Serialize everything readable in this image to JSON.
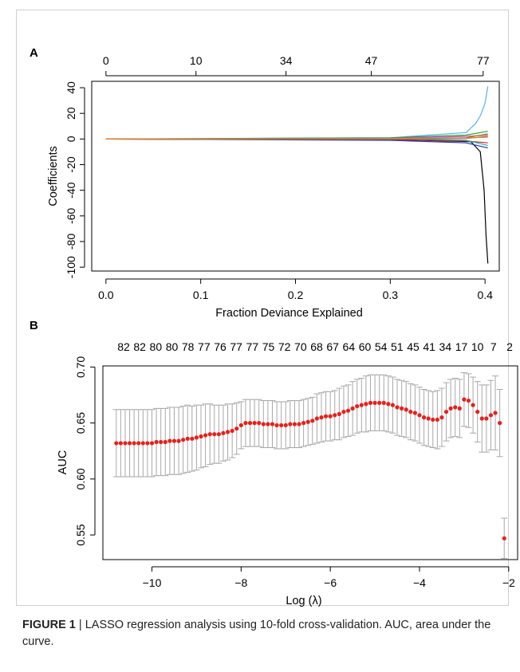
{
  "caption": {
    "label": "FIGURE 1",
    "separator": " | ",
    "text": "LASSO regression analysis using 10-fold cross-validation. AUC, area under the curve."
  },
  "chart_data": [
    {
      "panel": "A",
      "type": "line",
      "xlabel": "Fraction Deviance Explained",
      "ylabel": "Coefficients",
      "xlim": [
        -0.015,
        0.415
      ],
      "ylim": [
        -103,
        45
      ],
      "x_ticks": [
        0.0,
        0.1,
        0.2,
        0.3,
        0.4
      ],
      "x_tick_labels": [
        "0.0",
        "0.1",
        "0.2",
        "0.3",
        "0.4"
      ],
      "y_ticks": [
        40,
        20,
        0,
        -20,
        -40,
        -60,
        -80,
        -100
      ],
      "y_tick_labels": [
        "40",
        "20",
        "0",
        "-20",
        "-40",
        "-60",
        "-80",
        "-100"
      ],
      "top_axis_ticks": [
        0.0,
        0.095,
        0.19,
        0.28,
        0.398
      ],
      "top_axis_labels": [
        "0",
        "10",
        "34",
        "47",
        "77"
      ],
      "grid": false,
      "series": [
        {
          "color": "#56b4e9",
          "x": [
            0,
            0.3,
            0.38,
            0.39,
            0.395,
            0.4,
            0.403
          ],
          "y": [
            0,
            1,
            5,
            12,
            18,
            28,
            41
          ]
        },
        {
          "color": "#000000",
          "x": [
            0,
            0.3,
            0.385,
            0.395,
            0.399,
            0.401,
            0.403
          ],
          "y": [
            0,
            -0.5,
            -2,
            -10,
            -40,
            -75,
            -97
          ]
        },
        {
          "color": "#2b9e3a",
          "x": [
            0,
            0.3,
            0.38,
            0.403
          ],
          "y": [
            0,
            1,
            3,
            6
          ]
        },
        {
          "color": "#cc2222",
          "x": [
            0,
            0.3,
            0.38,
            0.403
          ],
          "y": [
            0,
            -0.5,
            -1.5,
            -3
          ]
        },
        {
          "color": "#2233bb",
          "x": [
            0,
            0.3,
            0.38,
            0.403
          ],
          "y": [
            0,
            -1,
            -3,
            -7
          ]
        },
        {
          "color": "#d14fd1",
          "x": [
            0,
            0.3,
            0.38,
            0.403
          ],
          "y": [
            0,
            0.5,
            2,
            3
          ]
        },
        {
          "color": "#8a8a00",
          "x": [
            0,
            0.3,
            0.38,
            0.403
          ],
          "y": [
            0,
            -0.3,
            1,
            4
          ]
        },
        {
          "color": "#20b2aa",
          "x": [
            0,
            0.3,
            0.38,
            0.403
          ],
          "y": [
            0,
            0.2,
            -1,
            -5
          ]
        },
        {
          "color": "#777777",
          "x": [
            0,
            0.3,
            0.38,
            0.403
          ],
          "y": [
            0,
            -0.2,
            0.5,
            2
          ]
        },
        {
          "color": "#e67e22",
          "x": [
            0,
            0.3,
            0.38,
            0.403
          ],
          "y": [
            0,
            0.3,
            0.8,
            1.5
          ]
        }
      ]
    },
    {
      "panel": "B",
      "type": "scatter",
      "xlabel": "Log (λ)",
      "ylabel": "AUC",
      "xlim": [
        -11.1,
        -1.8
      ],
      "ylim": [
        0.528,
        0.701
      ],
      "x_ticks": [
        -10,
        -8,
        -6,
        -4,
        -2
      ],
      "x_tick_labels": [
        "−10",
        "−8",
        "−6",
        "−4",
        "−2"
      ],
      "y_ticks": [
        0.55,
        0.6,
        0.65,
        0.7
      ],
      "y_tick_labels": [
        "0.55",
        "0.60",
        "0.65",
        "0.70"
      ],
      "top_axis_labels": [
        "82",
        "82",
        "80",
        "80",
        "78",
        "77",
        "76",
        "77",
        "77",
        "75",
        "72",
        "70",
        "68",
        "67",
        "64",
        "60",
        "54",
        "51",
        "45",
        "41",
        "34",
        "17",
        "10",
        "7",
        "2"
      ],
      "grid": false,
      "point_color": "#e8201a",
      "errorbar_color": "#a8a8a8",
      "x": [
        -10.8,
        -10.7,
        -10.6,
        -10.5,
        -10.4,
        -10.3,
        -10.2,
        -10.1,
        -10.0,
        -9.9,
        -9.8,
        -9.7,
        -9.6,
        -9.5,
        -9.4,
        -9.3,
        -9.2,
        -9.1,
        -9.0,
        -8.9,
        -8.8,
        -8.7,
        -8.6,
        -8.5,
        -8.4,
        -8.3,
        -8.2,
        -8.1,
        -8.0,
        -7.9,
        -7.8,
        -7.7,
        -7.6,
        -7.5,
        -7.4,
        -7.3,
        -7.2,
        -7.1,
        -7.0,
        -6.9,
        -6.8,
        -6.7,
        -6.6,
        -6.5,
        -6.4,
        -6.3,
        -6.2,
        -6.1,
        -6.0,
        -5.9,
        -5.8,
        -5.7,
        -5.6,
        -5.5,
        -5.4,
        -5.3,
        -5.2,
        -5.1,
        -5.0,
        -4.9,
        -4.8,
        -4.7,
        -4.6,
        -4.5,
        -4.4,
        -4.3,
        -4.2,
        -4.1,
        -4.0,
        -3.9,
        -3.8,
        -3.7,
        -3.6,
        -3.5,
        -3.4,
        -3.3,
        -3.2,
        -3.1,
        -3.0,
        -2.9,
        -2.8,
        -2.7,
        -2.6,
        -2.5,
        -2.4,
        -2.3,
        -2.2,
        -2.1
      ],
      "y": [
        0.632,
        0.632,
        0.632,
        0.632,
        0.632,
        0.632,
        0.632,
        0.632,
        0.632,
        0.633,
        0.633,
        0.633,
        0.634,
        0.634,
        0.634,
        0.635,
        0.636,
        0.636,
        0.637,
        0.638,
        0.639,
        0.64,
        0.64,
        0.64,
        0.641,
        0.642,
        0.643,
        0.645,
        0.648,
        0.65,
        0.65,
        0.65,
        0.65,
        0.649,
        0.649,
        0.649,
        0.648,
        0.648,
        0.648,
        0.649,
        0.649,
        0.649,
        0.65,
        0.651,
        0.652,
        0.654,
        0.655,
        0.656,
        0.656,
        0.657,
        0.658,
        0.66,
        0.661,
        0.663,
        0.665,
        0.666,
        0.667,
        0.668,
        0.668,
        0.668,
        0.668,
        0.667,
        0.666,
        0.664,
        0.663,
        0.662,
        0.66,
        0.659,
        0.657,
        0.655,
        0.654,
        0.653,
        0.653,
        0.655,
        0.66,
        0.663,
        0.664,
        0.663,
        0.671,
        0.67,
        0.666,
        0.66,
        0.654,
        0.654,
        0.657,
        0.659,
        0.65,
        0.547
      ],
      "err": [
        0.03,
        0.03,
        0.03,
        0.03,
        0.03,
        0.03,
        0.03,
        0.03,
        0.03,
        0.03,
        0.03,
        0.03,
        0.03,
        0.03,
        0.03,
        0.03,
        0.03,
        0.029,
        0.029,
        0.028,
        0.028,
        0.027,
        0.026,
        0.026,
        0.025,
        0.025,
        0.024,
        0.023,
        0.021,
        0.021,
        0.021,
        0.021,
        0.021,
        0.021,
        0.021,
        0.021,
        0.021,
        0.021,
        0.021,
        0.021,
        0.021,
        0.021,
        0.021,
        0.021,
        0.021,
        0.022,
        0.022,
        0.022,
        0.022,
        0.022,
        0.023,
        0.023,
        0.023,
        0.024,
        0.024,
        0.024,
        0.025,
        0.025,
        0.025,
        0.025,
        0.025,
        0.025,
        0.025,
        0.025,
        0.025,
        0.025,
        0.025,
        0.025,
        0.025,
        0.025,
        0.025,
        0.025,
        0.026,
        0.026,
        0.026,
        0.026,
        0.026,
        0.026,
        0.024,
        0.024,
        0.025,
        0.027,
        0.03,
        0.03,
        0.031,
        0.033,
        0.03,
        0.018
      ]
    }
  ]
}
